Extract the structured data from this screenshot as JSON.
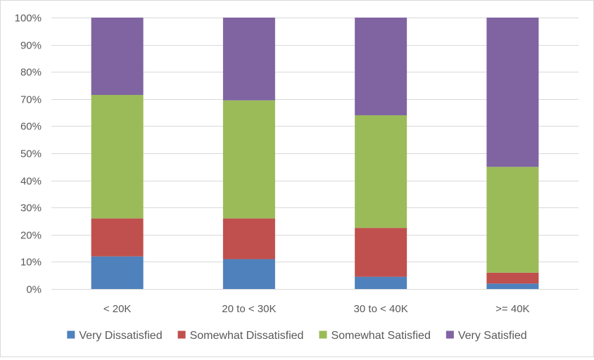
{
  "chart_data": {
    "type": "bar",
    "stacked": true,
    "percent_stacked": true,
    "title": "",
    "xlabel": "",
    "ylabel": "",
    "ylim": [
      0,
      100
    ],
    "yticks": [
      0,
      10,
      20,
      30,
      40,
      50,
      60,
      70,
      80,
      90,
      100
    ],
    "ytick_labels": [
      "0%",
      "10%",
      "20%",
      "30%",
      "40%",
      "50%",
      "60%",
      "70%",
      "80%",
      "90%",
      "100%"
    ],
    "grid": true,
    "legend_position": "bottom",
    "categories": [
      "< 20K",
      "20 to < 30K",
      "30 to < 40K",
      ">= 40K"
    ],
    "series": [
      {
        "name": "Very Dissatisfied",
        "color": "#4f81bd",
        "values": [
          12,
          11,
          4.5,
          2
        ]
      },
      {
        "name": "Somewhat Dissatisfied",
        "color": "#c0504d",
        "values": [
          14,
          15,
          18,
          4
        ]
      },
      {
        "name": "Somewhat Satisfied",
        "color": "#9bbb59",
        "values": [
          45.5,
          43.5,
          41.5,
          39
        ]
      },
      {
        "name": "Very Satisfied",
        "color": "#8064a2",
        "values": [
          28.5,
          30.5,
          36,
          55
        ]
      }
    ]
  }
}
